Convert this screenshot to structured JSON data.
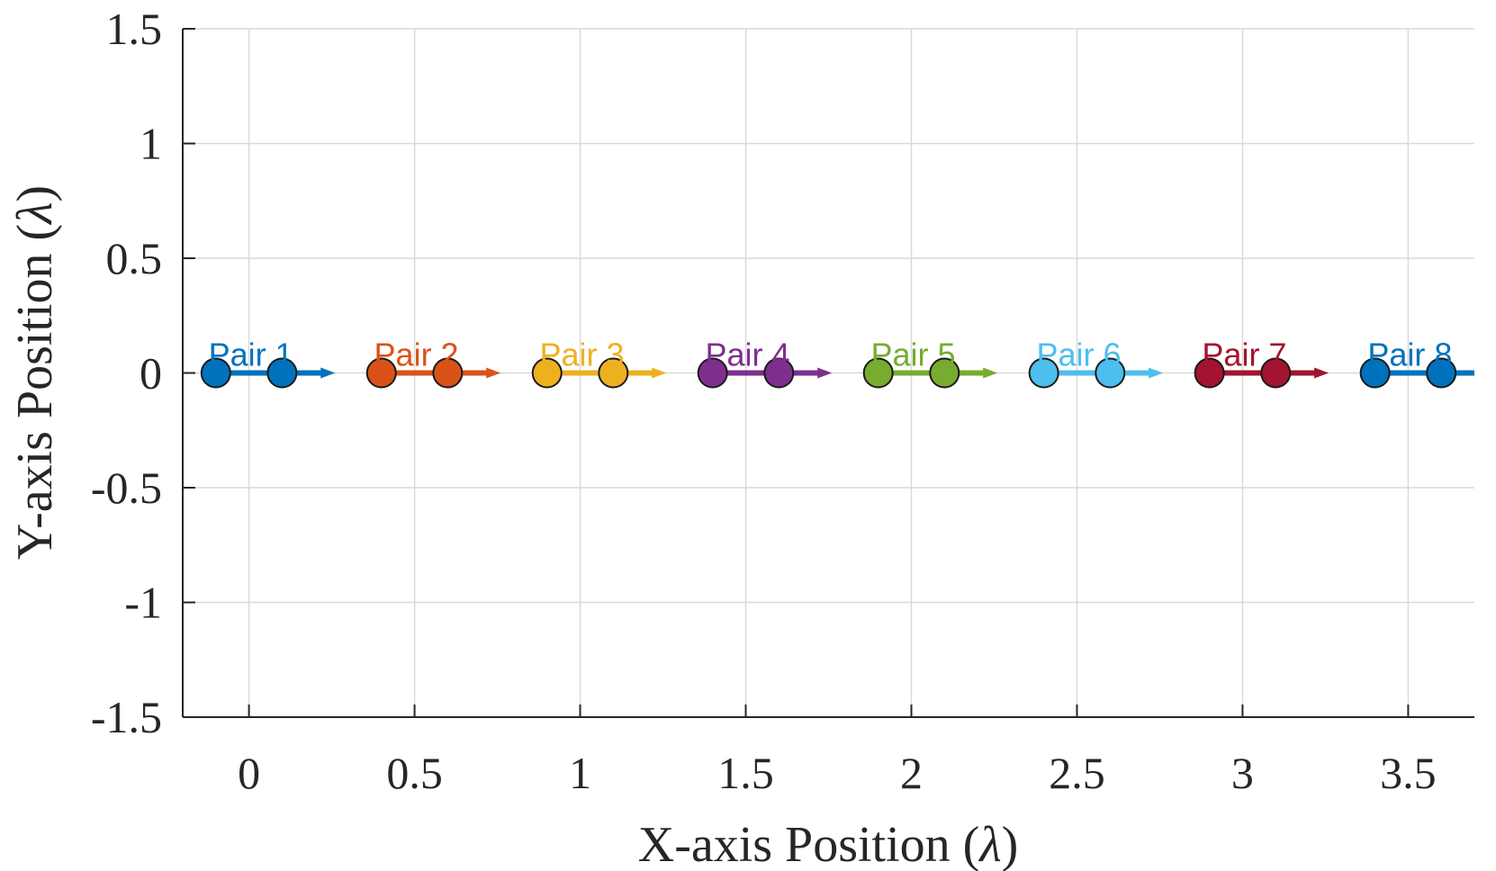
{
  "chart_data": {
    "type": "scatter",
    "xlabel": "X-axis Position (",
    "xlabel_symbol": "λ",
    "xlabel_close": ")",
    "ylabel": "Y-axis Position (",
    "ylabel_symbol": "λ",
    "ylabel_close": ")",
    "xlim": [
      -0.2,
      3.7
    ],
    "ylim": [
      -1.5,
      1.5
    ],
    "xticks": [
      0,
      0.5,
      1,
      1.5,
      2,
      2.5,
      3,
      3.5
    ],
    "xtick_labels": [
      "0",
      "0.5",
      "1",
      "1.5",
      "2",
      "2.5",
      "3",
      "3.5"
    ],
    "yticks": [
      1.5,
      1,
      0.5,
      0,
      -0.5,
      -1,
      -1.5
    ],
    "ytick_labels": [
      "1.5",
      "1",
      "0.5",
      "0",
      "-0.5",
      "-1",
      "-1.5"
    ],
    "grid": true,
    "arrow_length": 0.16,
    "pairs": [
      {
        "label": "Pair 1",
        "color": "#0072BD",
        "points": [
          [
            -0.1,
            0
          ],
          [
            0.1,
            0
          ]
        ]
      },
      {
        "label": "Pair 2",
        "color": "#D95319",
        "points": [
          [
            0.4,
            0
          ],
          [
            0.6,
            0
          ]
        ]
      },
      {
        "label": "Pair 3",
        "color": "#EDB120",
        "points": [
          [
            0.9,
            0
          ],
          [
            1.1,
            0
          ]
        ]
      },
      {
        "label": "Pair 4",
        "color": "#7E2F8E",
        "points": [
          [
            1.4,
            0
          ],
          [
            1.6,
            0
          ]
        ]
      },
      {
        "label": "Pair 5",
        "color": "#77AC30",
        "points": [
          [
            1.9,
            0
          ],
          [
            2.1,
            0
          ]
        ]
      },
      {
        "label": "Pair 6",
        "color": "#4DBEEE",
        "points": [
          [
            2.4,
            0
          ],
          [
            2.6,
            0
          ]
        ]
      },
      {
        "label": "Pair 7",
        "color": "#A2142F",
        "points": [
          [
            2.9,
            0
          ],
          [
            3.1,
            0
          ]
        ]
      },
      {
        "label": "Pair 8",
        "color": "#0072BD",
        "points": [
          [
            3.4,
            0
          ],
          [
            3.6,
            0
          ]
        ]
      }
    ]
  }
}
